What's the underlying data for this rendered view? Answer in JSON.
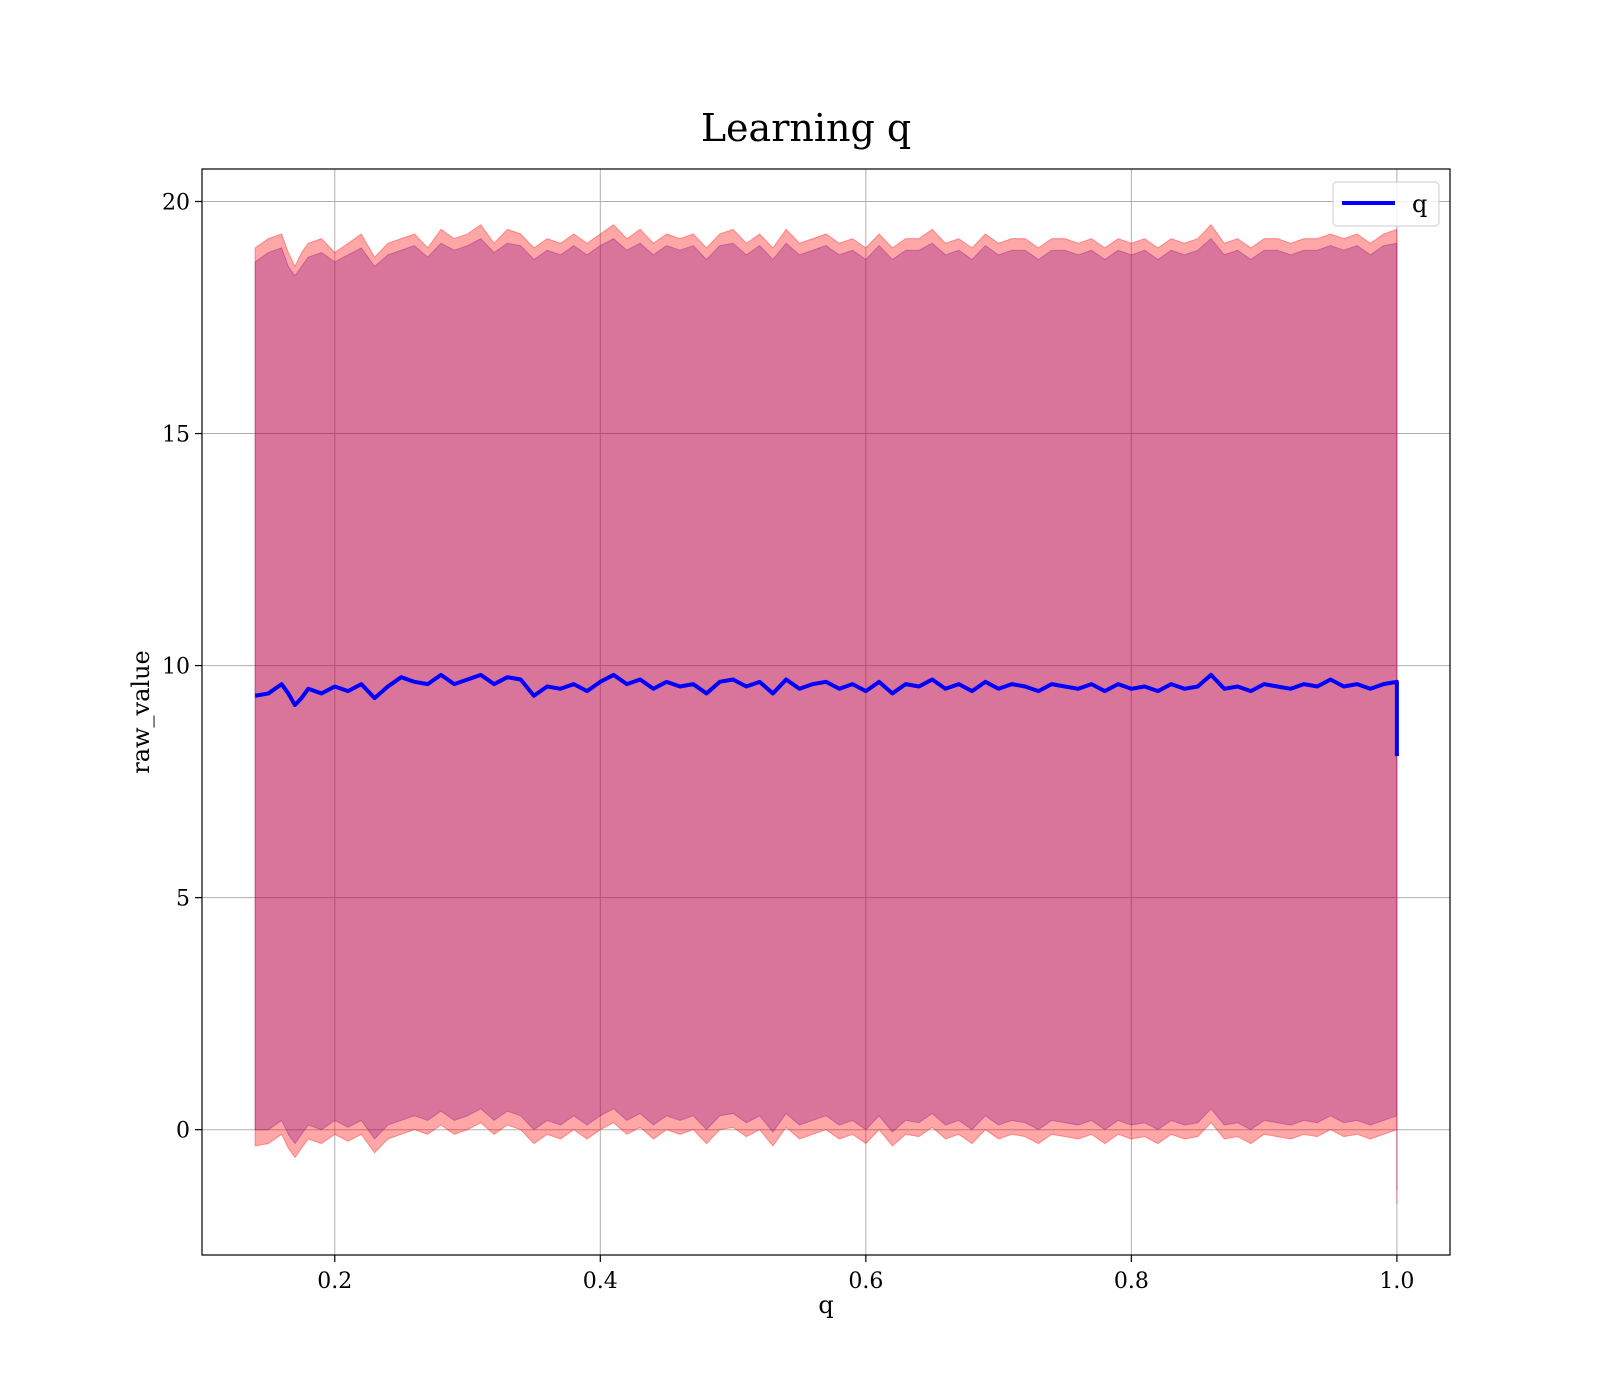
{
  "chart_data": {
    "type": "line",
    "title": "Learning q",
    "xlabel": "q",
    "ylabel": "raw_value",
    "xlim": [
      0.1,
      1.04
    ],
    "ylim": [
      -2.7,
      20.7
    ],
    "xticks": [
      0.2,
      0.4,
      0.6,
      0.8,
      1.0
    ],
    "xtick_labels": [
      "0.2",
      "0.4",
      "0.6",
      "0.8",
      "1.0"
    ],
    "yticks": [
      0,
      5,
      10,
      15,
      20
    ],
    "ytick_labels": [
      "0",
      "5",
      "10",
      "15",
      "20"
    ],
    "grid": true,
    "legend_position": "top-right",
    "series": [
      {
        "name": "q",
        "color": "#0000ff",
        "x": [
          0.14,
          0.15,
          0.16,
          0.165,
          0.17,
          0.175,
          0.18,
          0.19,
          0.2,
          0.21,
          0.22,
          0.23,
          0.24,
          0.25,
          0.26,
          0.27,
          0.28,
          0.29,
          0.3,
          0.31,
          0.32,
          0.33,
          0.34,
          0.35,
          0.36,
          0.37,
          0.38,
          0.39,
          0.4,
          0.41,
          0.42,
          0.43,
          0.44,
          0.45,
          0.46,
          0.47,
          0.48,
          0.49,
          0.5,
          0.51,
          0.52,
          0.53,
          0.54,
          0.55,
          0.56,
          0.57,
          0.58,
          0.59,
          0.6,
          0.61,
          0.62,
          0.63,
          0.64,
          0.65,
          0.66,
          0.67,
          0.68,
          0.69,
          0.7,
          0.71,
          0.72,
          0.73,
          0.74,
          0.75,
          0.76,
          0.77,
          0.78,
          0.79,
          0.8,
          0.81,
          0.82,
          0.83,
          0.84,
          0.85,
          0.86,
          0.87,
          0.88,
          0.89,
          0.9,
          0.91,
          0.92,
          0.93,
          0.94,
          0.95,
          0.96,
          0.97,
          0.98,
          0.99,
          1.0,
          1.0
        ],
        "values": [
          9.35,
          9.4,
          9.6,
          9.4,
          9.15,
          9.3,
          9.5,
          9.4,
          9.55,
          9.45,
          9.6,
          9.3,
          9.55,
          9.75,
          9.65,
          9.6,
          9.8,
          9.6,
          9.7,
          9.8,
          9.6,
          9.75,
          9.7,
          9.35,
          9.55,
          9.5,
          9.6,
          9.45,
          9.65,
          9.8,
          9.6,
          9.7,
          9.5,
          9.65,
          9.55,
          9.6,
          9.4,
          9.65,
          9.7,
          9.55,
          9.65,
          9.4,
          9.7,
          9.5,
          9.6,
          9.65,
          9.5,
          9.6,
          9.45,
          9.65,
          9.4,
          9.6,
          9.55,
          9.7,
          9.5,
          9.6,
          9.45,
          9.65,
          9.5,
          9.6,
          9.55,
          9.45,
          9.6,
          9.55,
          9.5,
          9.6,
          9.45,
          9.6,
          9.5,
          9.55,
          9.45,
          9.6,
          9.5,
          9.55,
          9.8,
          9.5,
          9.55,
          9.45,
          9.6,
          9.55,
          9.5,
          9.6,
          9.55,
          9.7,
          9.55,
          9.6,
          9.5,
          9.6,
          9.65,
          8.05
        ]
      }
    ],
    "bands": [
      {
        "color": "#ff0000",
        "opacity": 0.35,
        "upper": [
          19.0,
          19.2,
          19.3,
          18.9,
          18.6,
          18.9,
          19.1,
          19.2,
          18.9,
          19.1,
          19.3,
          18.8,
          19.1,
          19.2,
          19.3,
          19.0,
          19.4,
          19.2,
          19.3,
          19.5,
          19.1,
          19.4,
          19.3,
          19.0,
          19.2,
          19.1,
          19.3,
          19.1,
          19.3,
          19.5,
          19.2,
          19.4,
          19.1,
          19.3,
          19.2,
          19.3,
          19.0,
          19.3,
          19.4,
          19.1,
          19.3,
          19.0,
          19.4,
          19.1,
          19.2,
          19.3,
          19.1,
          19.2,
          19.0,
          19.3,
          19.0,
          19.2,
          19.2,
          19.4,
          19.1,
          19.2,
          19.0,
          19.3,
          19.1,
          19.2,
          19.2,
          19.0,
          19.2,
          19.2,
          19.1,
          19.2,
          19.0,
          19.2,
          19.1,
          19.2,
          19.0,
          19.2,
          19.1,
          19.2,
          19.5,
          19.1,
          19.2,
          19.0,
          19.2,
          19.2,
          19.1,
          19.2,
          19.2,
          19.3,
          19.2,
          19.3,
          19.1,
          19.3,
          19.4,
          19.4
        ],
        "lower": [
          -0.35,
          -0.3,
          -0.1,
          -0.4,
          -0.6,
          -0.4,
          -0.2,
          -0.3,
          -0.1,
          -0.25,
          -0.1,
          -0.5,
          -0.2,
          -0.1,
          0.0,
          -0.1,
          0.1,
          -0.1,
          0.0,
          0.15,
          -0.1,
          0.1,
          0.0,
          -0.3,
          -0.1,
          -0.2,
          0.0,
          -0.2,
          0.0,
          0.15,
          -0.1,
          0.05,
          -0.2,
          0.0,
          -0.1,
          0.0,
          -0.3,
          0.0,
          0.05,
          -0.15,
          0.0,
          -0.35,
          0.05,
          -0.2,
          -0.1,
          0.0,
          -0.2,
          -0.1,
          -0.3,
          0.0,
          -0.35,
          -0.1,
          -0.15,
          0.05,
          -0.2,
          -0.1,
          -0.3,
          0.0,
          -0.2,
          -0.1,
          -0.15,
          -0.3,
          -0.1,
          -0.15,
          -0.2,
          -0.1,
          -0.3,
          -0.1,
          -0.2,
          -0.15,
          -0.3,
          -0.1,
          -0.2,
          -0.15,
          0.15,
          -0.2,
          -0.15,
          -0.3,
          -0.1,
          -0.15,
          -0.2,
          -0.1,
          -0.15,
          0.0,
          -0.15,
          -0.1,
          -0.2,
          -0.1,
          0.0,
          -1.6
        ]
      },
      {
        "color": "#800080",
        "opacity": 0.3,
        "upper": [
          18.7,
          18.9,
          19.0,
          18.6,
          18.4,
          18.6,
          18.8,
          18.9,
          18.7,
          18.85,
          19.0,
          18.6,
          18.85,
          18.95,
          19.05,
          18.8,
          19.1,
          18.95,
          19.05,
          19.2,
          18.9,
          19.1,
          19.05,
          18.75,
          18.95,
          18.85,
          19.05,
          18.85,
          19.05,
          19.2,
          18.95,
          19.1,
          18.85,
          19.05,
          18.95,
          19.05,
          18.75,
          19.05,
          19.1,
          18.85,
          19.05,
          18.75,
          19.1,
          18.85,
          18.95,
          19.05,
          18.85,
          18.95,
          18.75,
          19.05,
          18.75,
          18.95,
          18.95,
          19.1,
          18.85,
          18.95,
          18.75,
          19.05,
          18.85,
          18.95,
          18.95,
          18.75,
          18.95,
          18.95,
          18.85,
          18.95,
          18.75,
          18.95,
          18.85,
          18.95,
          18.75,
          18.95,
          18.85,
          18.95,
          19.2,
          18.85,
          18.95,
          18.75,
          18.95,
          18.95,
          18.85,
          18.95,
          18.95,
          19.05,
          18.95,
          19.05,
          18.85,
          19.05,
          19.1,
          19.1
        ],
        "lower": [
          0.0,
          0.0,
          0.2,
          -0.1,
          -0.3,
          -0.1,
          0.1,
          0.0,
          0.2,
          0.05,
          0.2,
          -0.2,
          0.1,
          0.2,
          0.3,
          0.2,
          0.4,
          0.2,
          0.3,
          0.45,
          0.2,
          0.4,
          0.3,
          0.0,
          0.2,
          0.1,
          0.3,
          0.1,
          0.3,
          0.45,
          0.2,
          0.35,
          0.1,
          0.3,
          0.2,
          0.3,
          0.0,
          0.3,
          0.35,
          0.15,
          0.3,
          -0.05,
          0.35,
          0.1,
          0.2,
          0.3,
          0.1,
          0.2,
          0.0,
          0.3,
          -0.05,
          0.2,
          0.15,
          0.35,
          0.1,
          0.2,
          0.0,
          0.3,
          0.1,
          0.2,
          0.15,
          0.0,
          0.2,
          0.15,
          0.1,
          0.2,
          0.0,
          0.2,
          0.1,
          0.15,
          0.0,
          0.2,
          0.1,
          0.15,
          0.45,
          0.1,
          0.15,
          0.0,
          0.2,
          0.15,
          0.1,
          0.2,
          0.15,
          0.3,
          0.15,
          0.2,
          0.1,
          0.2,
          0.3,
          -1.3
        ]
      }
    ]
  }
}
